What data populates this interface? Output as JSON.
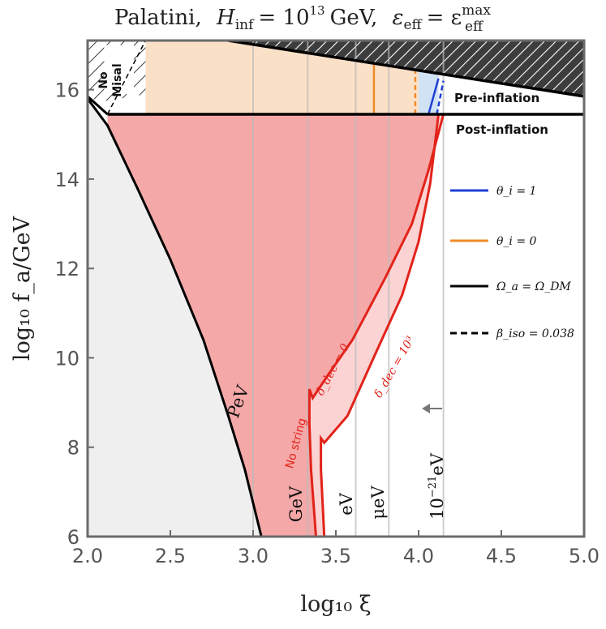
{
  "chart_data": {
    "type": "area",
    "title": "Palatini,  H_inf = 10^13 GeV,  ε_eff = ε_eff^max",
    "title_parts": {
      "prefix": "Palatini,",
      "h_symbol": "H",
      "h_sub": "inf",
      "h_eq": "= 10",
      "h_exp": "13",
      "h_unit": "GeV,",
      "eps_symbol": "ε",
      "eps_sub": "eff",
      "eps_eq": "= ε",
      "eps_sup": "max",
      "eps_sub2": "eff"
    },
    "xlabel": "log₁₀ ξ",
    "ylabel": "log₁₀ f_a/GeV",
    "xlim": [
      2.0,
      5.0
    ],
    "ylim": [
      6,
      17.1
    ],
    "x_ticks": [
      2.0,
      2.5,
      3.0,
      3.5,
      4.0,
      4.5,
      5.0
    ],
    "x_tick_labels": [
      "2.0",
      "2.5",
      "3.0",
      "3.5",
      "4.0",
      "4.5",
      "5.0"
    ],
    "y_ticks": [
      6,
      8,
      10,
      12,
      14,
      16
    ],
    "y_tick_labels": [
      "6",
      "8",
      "10",
      "12",
      "14",
      "16"
    ],
    "regions": {
      "excluded_top": {
        "x": [
          2.0,
          2.85,
          5.0
        ],
        "y": [
          17.1,
          17.1,
          15.85
        ]
      },
      "pre_post_boundary_y": 15.45,
      "no_misal_x_max": 2.35,
      "pre_inflation_band": {
        "x": [
          2.35,
          4.12
        ],
        "y_low": 15.45
      },
      "gray_region_boundary": {
        "x": [
          2.0,
          2.12,
          2.3,
          2.5,
          2.7,
          2.85,
          2.95,
          3.05
        ],
        "y": [
          15.8,
          15.2,
          13.8,
          12.2,
          10.4,
          8.7,
          7.5,
          6.0
        ]
      },
      "red_outer_boundary": {
        "x": [
          3.38,
          3.35,
          3.34,
          3.34,
          3.36,
          3.45,
          3.6,
          3.8,
          3.96,
          4.06,
          4.15
        ],
        "y": [
          6.0,
          7.5,
          8.5,
          9.3,
          9.1,
          9.6,
          10.4,
          11.8,
          13.0,
          14.2,
          15.45
        ]
      },
      "red_inner_boundary": {
        "x": [
          3.43,
          3.41,
          3.41,
          3.43,
          3.57,
          3.74,
          3.9,
          4.0,
          4.07,
          4.12
        ],
        "y": [
          6.0,
          7.5,
          8.2,
          8.1,
          8.7,
          10.1,
          11.4,
          12.6,
          13.9,
          15.45
        ]
      }
    },
    "series": [
      {
        "name": "θ_i = 1",
        "color": "#1f3fd6",
        "style": "solid"
      },
      {
        "name": "θ_i = 0",
        "color": "#f08a2a",
        "style": "solid"
      },
      {
        "name": "Ω_a = Ω_DM",
        "color": "#000000",
        "style": "solid"
      },
      {
        "name": "β_iso = 0.038",
        "color": "#000000",
        "style": "dashed"
      }
    ],
    "vertical_mass_lines": [
      {
        "x": 3.0,
        "label": ""
      },
      {
        "x": 3.33,
        "label": ""
      },
      {
        "x": 3.62,
        "label": ""
      },
      {
        "x": 3.82,
        "label": ""
      },
      {
        "x": 4.15,
        "label": ""
      }
    ],
    "annotations": {
      "no_misal": [
        "No",
        "Misal"
      ],
      "pre_inflation": "Pre-inflation",
      "post_inflation": "Post-inflation",
      "pev": "PeV",
      "gev": "GeV",
      "ev": "eV",
      "mu_ev": "μeV",
      "ev21_base": "10",
      "ev21_exp": "−21",
      "ev21_unit": "eV",
      "no_string": "No string",
      "delta_dec_0": "δ_dec = 0",
      "delta_dec_1000": "δ_dec = 10³",
      "legend_theta1": "θ_i = 1",
      "legend_theta0": "θ_i = 0",
      "legend_omega": "Ω_a = Ω_DM",
      "legend_beta": "β_iso = 0.038"
    },
    "legend_placement": "right"
  },
  "colors": {
    "red_fill": "#f5a8a8",
    "red_light_fill": "#fbd3d3",
    "red_line": "#e2231a",
    "gray_fill": "#efefef",
    "orange_fill": "#fbe0c8",
    "blue_fill": "#cfe3f5",
    "hatch": "#444444",
    "axis": "#6b6b6b"
  }
}
